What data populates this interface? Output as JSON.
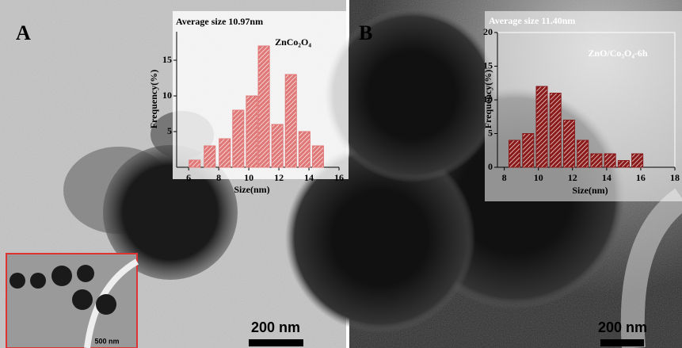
{
  "panels": [
    {
      "label": "A",
      "scale_bar": "200 nm",
      "inset_scale_bar": "500 nm"
    },
    {
      "label": "B",
      "scale_bar": "200 nm"
    }
  ],
  "chart_data": [
    {
      "type": "bar",
      "title": "Average size 10.97nm",
      "legend": "ZnCo₂O₄",
      "x_label": "Size(nm)",
      "y_label": "Frequency(%)",
      "x": [
        6.4,
        7.4,
        8.4,
        9.3,
        10.2,
        11.0,
        11.9,
        12.8,
        13.7,
        14.6
      ],
      "values": [
        1,
        3,
        4,
        8,
        10,
        17,
        6,
        13,
        5,
        3
      ],
      "color": "#e07878",
      "xlim": [
        5.2,
        16
      ],
      "xticks": [
        6,
        8,
        10,
        12,
        14,
        16
      ],
      "ylim": [
        0,
        19
      ],
      "yticks": [
        5,
        10,
        15
      ]
    },
    {
      "type": "bar",
      "title": "Average size 11.40nm",
      "legend": "ZnO/Co₃O₄-6h",
      "x_label": "Size(nm)",
      "y_label": "Frequency(%)",
      "x": [
        8.6,
        9.4,
        10.2,
        11.0,
        11.8,
        12.6,
        13.4,
        14.2,
        15.0,
        15.8
      ],
      "values": [
        4,
        5,
        12,
        11,
        7,
        4,
        2,
        2,
        1,
        2
      ],
      "color": "#8b1a1a",
      "xlim": [
        7.6,
        18
      ],
      "xticks": [
        8,
        10,
        12,
        14,
        16,
        18
      ],
      "ylim": [
        0,
        20
      ],
      "yticks": [
        0,
        5,
        10,
        15,
        20
      ]
    }
  ]
}
